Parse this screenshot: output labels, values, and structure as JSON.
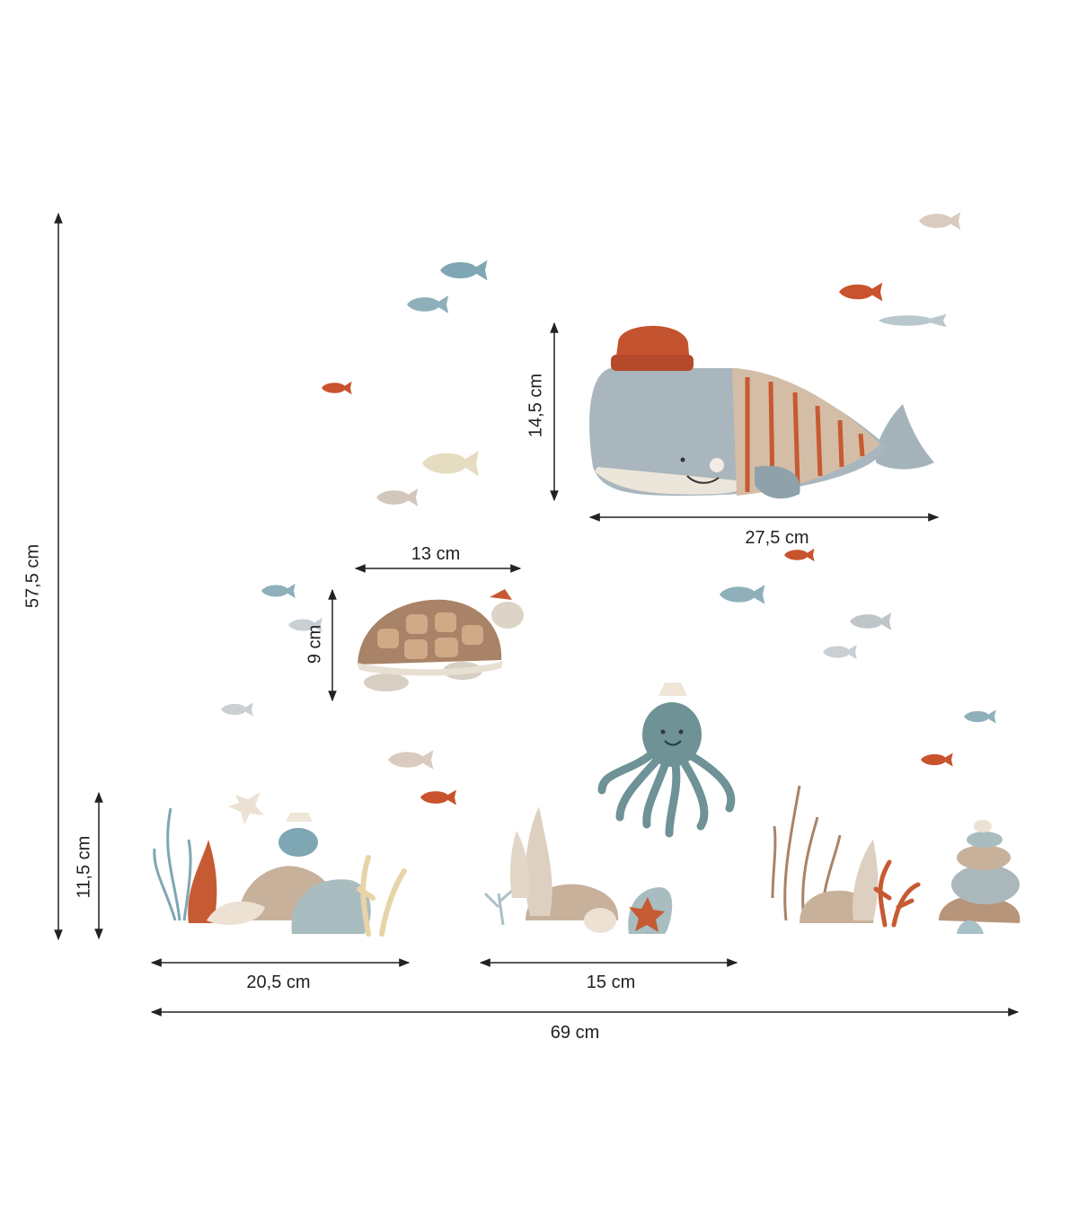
{
  "dimensions": {
    "total_height": "57,5 cm",
    "total_width": "69 cm",
    "whale_height": "14,5 cm",
    "whale_width": "27,5 cm",
    "turtle_width": "13 cm",
    "turtle_height": "9 cm",
    "reef_height": "11,5 cm",
    "reef_left_width": "20,5 cm",
    "reef_middle_width": "15 cm"
  },
  "colors": {
    "line": "#222222",
    "blue_fish": "#7fa6b3",
    "grey_fish": "#b9c2c6",
    "rust_fish": "#c9532e",
    "beige": "#d9c4ad",
    "whale_body": "#a9b6bd",
    "stripe": "#c65a33",
    "octopus": "#6e9296",
    "shell_brown": "#a98367",
    "rock_blue": "#a9bcc0",
    "rock_tan": "#c8b19b"
  }
}
